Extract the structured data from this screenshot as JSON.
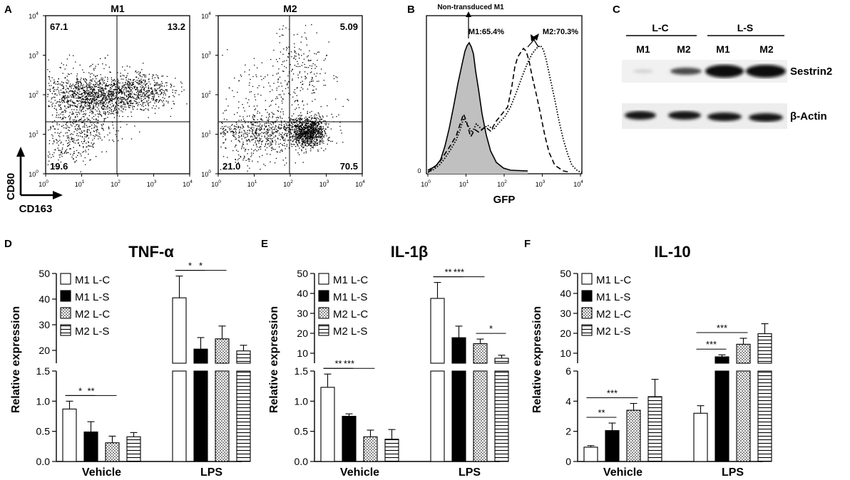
{
  "panel_letters": {
    "A": "A",
    "B": "B",
    "C": "C",
    "D": "D",
    "E": "E",
    "F": "F"
  },
  "flow": {
    "plots": [
      {
        "title": "M1",
        "q_ul": "67.1",
        "q_ur": "13.2",
        "q_ll": "19.6",
        "q_lr": ""
      },
      {
        "title": "M2",
        "q_ul": "",
        "q_ur": "5.09",
        "q_ll": "21.0",
        "q_lr": "70.5"
      }
    ],
    "y_axis_label": "CD80",
    "x_axis_label": "CD163"
  },
  "histogram": {
    "top_label": "Non-transduced M1",
    "m1_label": "M1:65.4%",
    "m2_label": "M2:70.3%",
    "xlabel": "GFP",
    "y_zero": "0"
  },
  "blot": {
    "groups": [
      "L-C",
      "L-S"
    ],
    "lanes": [
      "M1",
      "M2",
      "M1",
      "M2"
    ],
    "rows": [
      "Sestrin2",
      "β-Actin"
    ]
  },
  "legend": [
    "M1 L-C",
    "M1 L-S",
    "M2 L-C",
    "M2 L-S"
  ],
  "colors": {
    "ink": "#000000",
    "bar_open": "#ffffff",
    "bar_solid": "#000000",
    "gfp_fill": "#c0c0c0"
  },
  "chart_data": [
    {
      "type": "bar",
      "panel": "D",
      "title": "TNF-α",
      "ylabel": "Relative expression",
      "categories": [
        "Vehicle",
        "LPS"
      ],
      "ylim_lower": [
        0,
        1.5
      ],
      "ylim_upper": [
        15,
        50
      ],
      "yticks_lower": [
        "0.0",
        "0.5",
        "1.0",
        "1.5"
      ],
      "yticks_upper": [
        "20",
        "30",
        "40",
        "50"
      ],
      "series": [
        {
          "name": "M1 L-C",
          "values": [
            0.87,
            40.5
          ],
          "errors": [
            0.13,
            8.5
          ]
        },
        {
          "name": "M1 L-S",
          "values": [
            0.49,
            20.5
          ],
          "errors": [
            0.17,
            4.5
          ]
        },
        {
          "name": "M2 L-C",
          "values": [
            0.31,
            24.5
          ],
          "errors": [
            0.11,
            5
          ]
        },
        {
          "name": "M2 L-S",
          "values": [
            0.41,
            19.8
          ],
          "errors": [
            0.07,
            2.2
          ]
        }
      ],
      "significance": [
        {
          "group": 0,
          "from": 0,
          "to": 1,
          "label": "*"
        },
        {
          "group": 0,
          "from": 0,
          "to": 2,
          "label": "**"
        },
        {
          "group": 1,
          "from": 0,
          "to": 1,
          "label": "*"
        },
        {
          "group": 1,
          "from": 0,
          "to": 2,
          "label": "*"
        }
      ]
    },
    {
      "type": "bar",
      "panel": "E",
      "title": "IL-1β",
      "ylabel": "Relative expression",
      "categories": [
        "Vehicle",
        "LPS"
      ],
      "ylim_lower": [
        0,
        1.5
      ],
      "ylim_upper": [
        5,
        50
      ],
      "yticks_lower": [
        "0.0",
        "0.5",
        "1.0",
        "1.5"
      ],
      "yticks_upper": [
        "10",
        "20",
        "30",
        "40",
        "50"
      ],
      "series": [
        {
          "name": "M1 L-C",
          "values": [
            1.23,
            37.5
          ],
          "errors": [
            0.22,
            8
          ]
        },
        {
          "name": "M1 L-S",
          "values": [
            0.75,
            17.8
          ],
          "errors": [
            0.04,
            5.8
          ]
        },
        {
          "name": "M2 L-C",
          "values": [
            0.41,
            14.8
          ],
          "errors": [
            0.11,
            2.3
          ]
        },
        {
          "name": "M2 L-S",
          "values": [
            0.37,
            7.5
          ],
          "errors": [
            0.16,
            1.5
          ]
        }
      ],
      "significance": [
        {
          "group": 0,
          "from": 0,
          "to": 1,
          "label": "**"
        },
        {
          "group": 0,
          "from": 0,
          "to": 2,
          "label": "***"
        },
        {
          "group": 1,
          "from": 0,
          "to": 1,
          "label": "**"
        },
        {
          "group": 1,
          "from": 0,
          "to": 2,
          "label": "***"
        },
        {
          "group": 1,
          "from": 2,
          "to": 3,
          "label": "*"
        }
      ]
    },
    {
      "type": "bar",
      "panel": "F",
      "title": "IL-10",
      "ylabel": "Relative expression",
      "categories": [
        "Vehicle",
        "LPS"
      ],
      "ylim_lower": [
        0,
        6
      ],
      "ylim_upper": [
        5,
        50
      ],
      "yticks_lower": [
        "0",
        "2",
        "4",
        "6"
      ],
      "yticks_upper": [
        "10",
        "20",
        "30",
        "40",
        "50"
      ],
      "series": [
        {
          "name": "M1 L-C",
          "values": [
            0.95,
            3.2
          ],
          "errors": [
            0.1,
            0.5
          ]
        },
        {
          "name": "M1 L-S",
          "values": [
            2.05,
            8.2
          ],
          "errors": [
            0.5,
            1
          ]
        },
        {
          "name": "M2 L-C",
          "values": [
            3.4,
            14.5
          ],
          "errors": [
            0.45,
            3
          ]
        },
        {
          "name": "M2 L-S",
          "values": [
            4.3,
            19.8
          ],
          "errors": [
            1.15,
            5
          ]
        }
      ],
      "significance": [
        {
          "group": 0,
          "from": 0,
          "to": 1,
          "label": "**"
        },
        {
          "group": 0,
          "from": 0,
          "to": 2,
          "label": "***"
        },
        {
          "group": 1,
          "from": 0,
          "to": 1,
          "label": "***"
        },
        {
          "group": 1,
          "from": 0,
          "to": 2,
          "label": "***"
        }
      ]
    }
  ]
}
